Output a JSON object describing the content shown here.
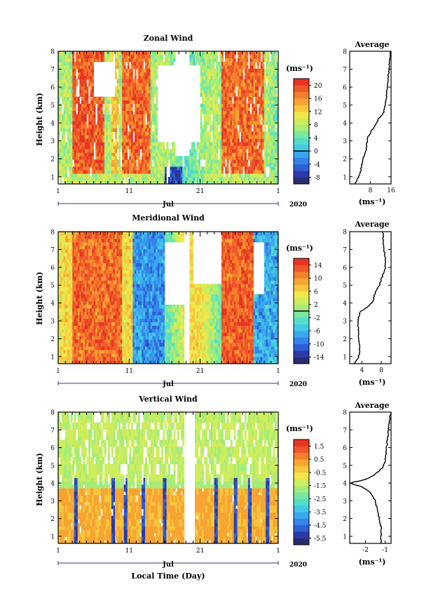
{
  "figure": {
    "xlabel": "Local Time (Day)",
    "month_label": "Jul",
    "year_label": "2020",
    "colorbar_unit": "(ms⁻¹)",
    "avg_unit": "(ms⁻¹)",
    "avg_title": "Average"
  },
  "panels": [
    {
      "title": "Zonal Wind",
      "ylabel": "Height (km)",
      "colorbar_ticks": [
        "20",
        "16",
        "12",
        "8",
        "4",
        "0",
        "-4",
        "-8"
      ],
      "avg_xticks": [
        "8",
        "16"
      ]
    },
    {
      "title": "Meridional Wind",
      "ylabel": "Height (km)",
      "colorbar_ticks": [
        "14",
        "10",
        "6",
        "2",
        "-2",
        "-6",
        "-10",
        "-14"
      ],
      "avg_xticks": [
        "4",
        "8"
      ]
    },
    {
      "title": "Vertical Wind",
      "ylabel": "Height (km)",
      "colorbar_ticks": [
        "1.5",
        "0.5",
        "-0.5",
        "-1.5",
        "-2.5",
        "-3.5",
        "-4.5",
        "-5.5"
      ],
      "avg_xticks": [
        "-2",
        "-1"
      ]
    }
  ],
  "chart_data": [
    {
      "type": "heatmap",
      "title": "Zonal Wind",
      "xlabel": "",
      "ylabel": "Height (km)",
      "x_tick_labels": [
        "1",
        "11",
        "21",
        "1"
      ],
      "y_tick_labels": [
        "1",
        "2",
        "3",
        "4",
        "5",
        "6",
        "7",
        "8"
      ],
      "xlim_days": [
        1,
        32
      ],
      "ylim": [
        0.6,
        8
      ],
      "colorbar": {
        "min": -10,
        "max": 22,
        "levels": 16,
        "ticks": [
          20,
          16,
          12,
          8,
          4,
          0,
          -4,
          -8
        ],
        "zero_contour": true
      },
      "dominant_pattern": "strong westerlies (orange/red) in columns around Jul 3-7, 10-14, 24-30; weak/negative near Jul 16-18 below 3 km; blanks above 3 km around Jul 17-21",
      "average_profile": {
        "title": "Average",
        "xlim": [
          0,
          16
        ],
        "xticks": [
          8,
          16
        ],
        "height": [
          0.6,
          0.9,
          1.2,
          1.6,
          2.0,
          2.4,
          2.8,
          3.2,
          3.6,
          3.9,
          4.2,
          4.6,
          5.0,
          5.5,
          6.0,
          6.5,
          7.0,
          7.4,
          7.8,
          8.0
        ],
        "value": [
          2.0,
          3.2,
          4.0,
          4.6,
          5.0,
          6.2,
          6.6,
          7.0,
          8.6,
          10.0,
          11.0,
          13.2,
          13.8,
          14.2,
          14.6,
          14.8,
          15.2,
          15.4,
          15.6,
          15.8
        ]
      }
    },
    {
      "type": "heatmap",
      "title": "Meridional Wind",
      "xlabel": "",
      "ylabel": "Height (km)",
      "x_tick_labels": [
        "1",
        "11",
        "21",
        "1"
      ],
      "y_tick_labels": [
        "1",
        "2",
        "3",
        "4",
        "5",
        "6",
        "7",
        "8"
      ],
      "xlim_days": [
        1,
        32
      ],
      "ylim": [
        0.6,
        8
      ],
      "colorbar": {
        "min": -16,
        "max": 16,
        "levels": 16,
        "ticks": [
          14,
          10,
          6,
          2,
          -2,
          -6,
          -10,
          -14
        ],
        "zero_contour": true
      },
      "dominant_pattern": "strong southerlies (red) Jul 3-10 and Jul 24-28; negative (blue) bands Jul 12-16 and Jul 28-32",
      "average_profile": {
        "title": "Average",
        "xlim": [
          1.5,
          10.0
        ],
        "xticks": [
          4,
          8
        ],
        "height": [
          0.6,
          0.9,
          1.2,
          1.6,
          2.0,
          2.4,
          2.8,
          3.2,
          3.5,
          3.8,
          4.1,
          4.5,
          5.0,
          5.5,
          6.0,
          6.5,
          7.0,
          7.5,
          8.0
        ],
        "value": [
          2.5,
          3.2,
          3.5,
          3.5,
          3.4,
          3.3,
          3.2,
          3.3,
          3.6,
          5.3,
          6.3,
          6.6,
          7.6,
          8.2,
          8.8,
          8.9,
          8.5,
          8.4,
          8.3
        ]
      }
    },
    {
      "type": "heatmap",
      "title": "Vertical Wind",
      "xlabel": "Local Time (Day)",
      "ylabel": "Height (km)",
      "x_tick_labels": [
        "1",
        "11",
        "21",
        "1"
      ],
      "y_tick_labels": [
        "1",
        "2",
        "3",
        "4",
        "5",
        "6",
        "7",
        "8"
      ],
      "xlim_days": [
        1,
        32
      ],
      "ylim": [
        0.6,
        8
      ],
      "colorbar": {
        "min": -6.0,
        "max": 2.0,
        "levels": 16,
        "ticks": [
          1.5,
          0.5,
          -0.5,
          -1.5,
          -2.5,
          -3.5,
          -4.5,
          -5.5
        ],
        "zero_contour": false
      },
      "dominant_pattern": "near -0.5 to 0.5 (yellow/orange) below 4 km, -1.5 (green) above; strong downdrafts (blue) in narrow columns; data gap around Jul 18-20",
      "average_profile": {
        "title": "Average",
        "xlim": [
          -2.8,
          -0.7
        ],
        "xticks": [
          -2,
          -1
        ],
        "height": [
          0.6,
          1.0,
          1.5,
          2.0,
          2.5,
          3.0,
          3.5,
          3.8,
          4.0,
          4.2,
          4.5,
          4.9,
          5.3,
          5.8,
          6.3,
          6.8,
          7.3,
          7.8,
          8.0
        ],
        "value": [
          -1.2,
          -1.2,
          -1.2,
          -1.3,
          -1.4,
          -1.5,
          -1.8,
          -2.2,
          -2.8,
          -2.0,
          -1.5,
          -1.1,
          -1.0,
          -0.95,
          -0.9,
          -0.85,
          -0.8,
          -0.75,
          -0.7
        ]
      }
    }
  ]
}
